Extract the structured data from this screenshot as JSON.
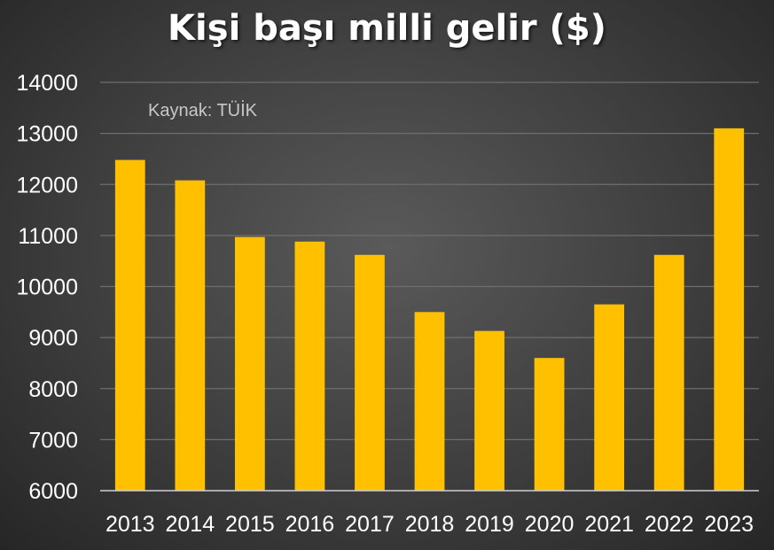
{
  "chart_data": {
    "type": "bar",
    "title": "Kişi başı milli gelir ($)",
    "annotation": "Kaynak: TÜİK",
    "categories": [
      "2013",
      "2014",
      "2015",
      "2016",
      "2017",
      "2018",
      "2019",
      "2020",
      "2021",
      "2022",
      "2023"
    ],
    "values": [
      12480,
      12080,
      10970,
      10880,
      10620,
      9500,
      9130,
      8600,
      9650,
      10620,
      13100
    ],
    "ylim": [
      6000,
      14000
    ],
    "yticks": [
      "6000",
      "7000",
      "8000",
      "9000",
      "10000",
      "11000",
      "12000",
      "13000",
      "14000"
    ],
    "xlabel": "",
    "ylabel": "",
    "grid": true,
    "legend": "none",
    "colors": {
      "bar": "#ffc000",
      "gridline": "#6e6e6e",
      "axis": "#cfcfcf",
      "tick_label": "#ffffff",
      "annotation": "#c8c8c8",
      "title": "#ffffff"
    }
  }
}
